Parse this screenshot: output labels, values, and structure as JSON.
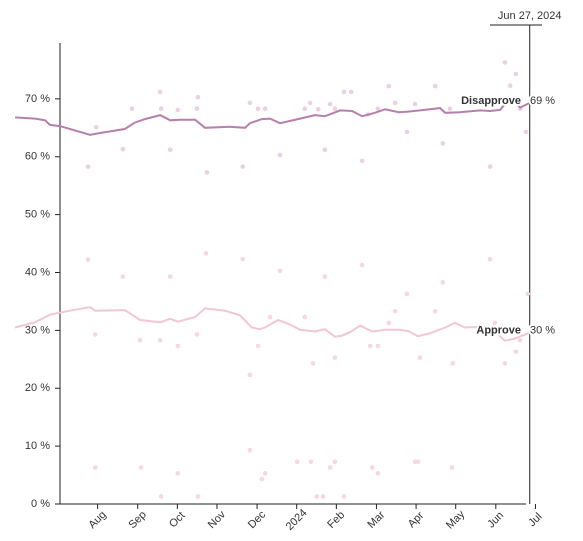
{
  "chart_data": {
    "type": "line",
    "xlim": [
      2023.41,
      2024.52
    ],
    "ylim": [
      0,
      80
    ],
    "xticks": [
      {
        "value": 2023.583,
        "label": "Aug"
      },
      {
        "value": 2023.667,
        "label": "Sep"
      },
      {
        "value": 2023.75,
        "label": "Oct"
      },
      {
        "value": 2023.833,
        "label": "Nov"
      },
      {
        "value": 2023.917,
        "label": "Dec"
      },
      2024,
      {
        "value": 2024.083,
        "label": "Feb"
      },
      {
        "value": 2024.167,
        "label": "Mar"
      },
      {
        "value": 2024.25,
        "label": "Apr"
      },
      {
        "value": 2024.333,
        "label": "May"
      },
      {
        "value": 2024.417,
        "label": "Jun"
      },
      {
        "value": 2024.5,
        "label": "Jul"
      }
    ],
    "yticks": [
      {
        "value": 0,
        "label": "0 %"
      },
      {
        "value": 10,
        "label": "10 %"
      },
      {
        "value": 20,
        "label": "20 %"
      },
      {
        "value": 30,
        "label": "30 %"
      },
      {
        "value": 40,
        "label": "40 %"
      },
      {
        "value": 50,
        "label": "50 %"
      },
      {
        "value": 60,
        "label": "60 %"
      },
      {
        "value": 70,
        "label": "70 %"
      }
    ],
    "annotation": {
      "text": "Jun 27, 2024",
      "x": 2024.488
    },
    "series": [
      {
        "name": "Disapprove",
        "color": "#b77fab",
        "label_color": "#9a4d8c",
        "x": [
          2023.41,
          2023.452,
          2023.473,
          2023.483,
          2023.504,
          2023.567,
          2023.588,
          2023.64,
          2023.661,
          2023.682,
          2023.714,
          2023.735,
          2023.756,
          2023.787,
          2023.808,
          2023.86,
          2023.892,
          2023.902,
          2023.927,
          2023.944,
          2023.965,
          2024.007,
          2024.038,
          2024.059,
          2024.091,
          2024.116,
          2024.137,
          2024.164,
          2024.185,
          2024.214,
          2024.233,
          2024.258,
          2024.3,
          2024.311,
          2024.342,
          2024.384,
          2024.405,
          2024.426,
          2024.436,
          2024.451,
          2024.468,
          2024.488
        ],
        "values": [
          66.8,
          66.6,
          66.3,
          65.5,
          65.3,
          63.8,
          64.1,
          64.8,
          65.9,
          66.5,
          67.2,
          66.3,
          66.4,
          66.4,
          65.0,
          65.2,
          65.0,
          65.8,
          66.5,
          66.6,
          65.8,
          66.6,
          67.2,
          67.0,
          68.0,
          67.9,
          67.0,
          67.6,
          68.2,
          67.7,
          67.8,
          68.0,
          68.4,
          67.6,
          67.7,
          68.0,
          67.9,
          68.1,
          69.1,
          70.1,
          68.5,
          69.3
        ],
        "value_label": "69 %",
        "polls": {
          "color": "#ead0e2",
          "x": [
            2023.563,
            2023.58,
            2023.636,
            2023.655,
            2023.714,
            2023.716,
            2023.735,
            2023.751,
            2023.791,
            2023.793,
            2023.812,
            2023.887,
            2023.902,
            2023.919,
            2023.934,
            2023.965,
            2024.017,
            2024.028,
            2024.045,
            2024.059,
            2024.07,
            2024.08,
            2024.099,
            2024.114,
            2024.137,
            2024.149,
            2024.17,
            2024.193,
            2024.206,
            2024.231,
            2024.248,
            2024.29,
            2024.306,
            2024.321,
            2024.405,
            2024.436,
            2024.447,
            2024.459,
            2024.468,
            2024.48
          ],
          "values": [
            58.3,
            65.1,
            61.3,
            68.3,
            71.2,
            68.3,
            61.2,
            68.1,
            68.3,
            70.3,
            57.3,
            58.3,
            69.3,
            68.3,
            68.3,
            60.3,
            68.3,
            69.3,
            68.2,
            61.2,
            69.1,
            68.3,
            71.2,
            71.2,
            59.3,
            67.3,
            68.3,
            72.2,
            69.3,
            64.3,
            69.1,
            72.2,
            62.3,
            68.3,
            58.3,
            76.3,
            72.3,
            74.3,
            68.3,
            64.3
          ]
        }
      },
      {
        "name": "Approve",
        "color": "#f2c6d3",
        "label_color": "#eaa4ba",
        "x": [
          2023.41,
          2023.452,
          2023.483,
          2023.525,
          2023.567,
          2023.578,
          2023.64,
          2023.672,
          2023.714,
          2023.735,
          2023.751,
          2023.787,
          2023.808,
          2023.85,
          2023.881,
          2023.906,
          2023.923,
          2023.936,
          2023.961,
          2023.986,
          2024.007,
          2024.038,
          2024.059,
          2024.08,
          2024.095,
          2024.112,
          2024.133,
          2024.158,
          2024.185,
          2024.214,
          2024.233,
          2024.254,
          2024.279,
          2024.311,
          2024.331,
          2024.352,
          2024.384,
          2024.415,
          2024.436,
          2024.457,
          2024.488
        ],
        "values": [
          30.5,
          31.4,
          32.7,
          33.4,
          34.0,
          33.4,
          33.5,
          31.8,
          31.4,
          32.0,
          31.5,
          32.3,
          33.8,
          33.4,
          32.6,
          30.5,
          30.2,
          30.6,
          31.8,
          31.0,
          30.1,
          29.8,
          30.2,
          28.9,
          29.1,
          29.7,
          30.8,
          29.8,
          30.1,
          30.1,
          29.9,
          29.0,
          29.5,
          30.5,
          31.3,
          30.5,
          30.6,
          29.8,
          28.2,
          28.6,
          29.6
        ],
        "value_label": "30 %",
        "polls": {
          "color": "#f6d6df",
          "x": [
            2023.563,
            2023.578,
            2023.578,
            2023.636,
            2023.672,
            2023.674,
            2023.714,
            2023.716,
            2023.735,
            2023.751,
            2023.751,
            2023.791,
            2023.793,
            2023.81,
            2023.887,
            2023.902,
            2023.902,
            2023.919,
            2023.927,
            2023.934,
            2023.944,
            2023.965,
            2024.001,
            2024.017,
            2024.03,
            2024.034,
            2024.042,
            2024.055,
            2024.059,
            2024.07,
            2024.08,
            2024.08,
            2024.099,
            2024.137,
            2024.154,
            2024.158,
            2024.17,
            2024.17,
            2024.193,
            2024.206,
            2024.231,
            2024.248,
            2024.254,
            2024.258,
            2024.29,
            2024.306,
            2024.325,
            2024.327,
            2024.405,
            2024.415,
            2024.436,
            2024.459,
            2024.468,
            2024.484
          ],
          "values": [
            42.2,
            29.3,
            6.3,
            39.3,
            28.3,
            6.3,
            28.3,
            1.3,
            39.3,
            27.3,
            5.3,
            29.3,
            1.3,
            43.3,
            42.3,
            22.3,
            9.3,
            27.3,
            4.3,
            5.3,
            32.3,
            40.3,
            7.3,
            32.3,
            7.3,
            24.3,
            1.3,
            1.3,
            39.3,
            6.3,
            7.3,
            25.3,
            1.3,
            41.3,
            27.3,
            6.3,
            5.3,
            27.3,
            31.3,
            33.3,
            36.3,
            7.3,
            7.3,
            25.3,
            33.3,
            38.3,
            6.3,
            24.3,
            42.3,
            31.3,
            24.3,
            26.3,
            28.3,
            36.3
          ]
        }
      }
    ]
  }
}
